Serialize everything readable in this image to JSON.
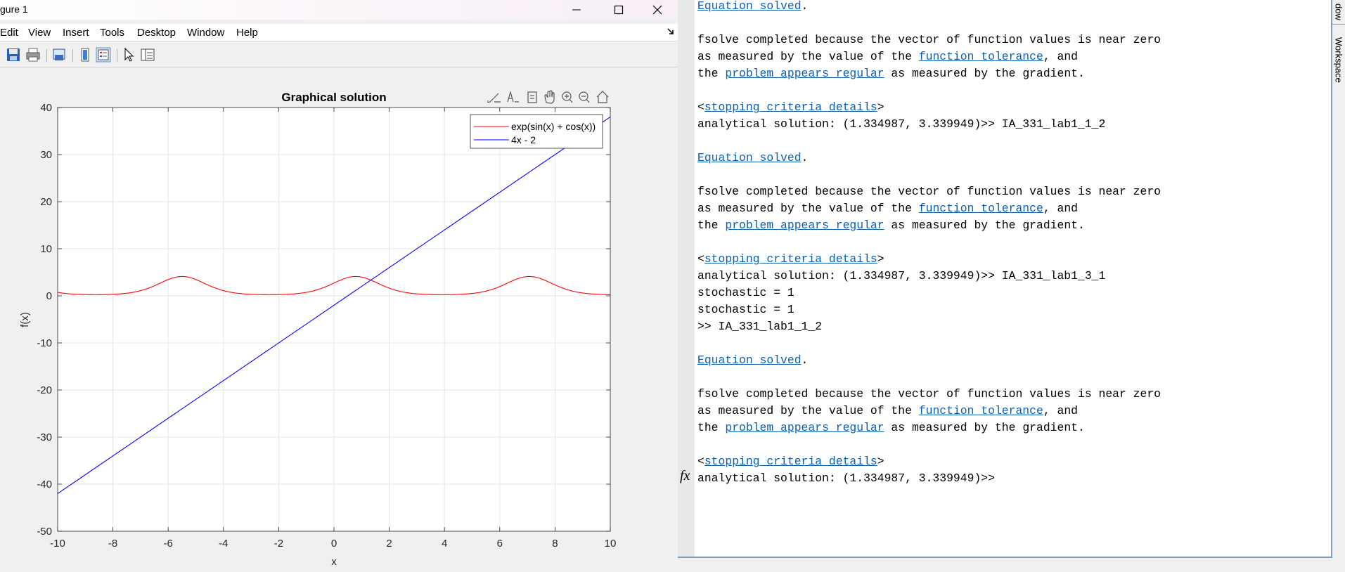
{
  "figure": {
    "title": "gure 1",
    "menu": [
      "Edit",
      "View",
      "Insert",
      "Tools",
      "Desktop",
      "Window",
      "Help"
    ]
  },
  "chart_data": {
    "type": "line",
    "title": "Graphical solution",
    "xlabel": "x",
    "ylabel": "f(x)",
    "xlim": [
      -10,
      10
    ],
    "ylim": [
      -50,
      40
    ],
    "xticks": [
      -10,
      -8,
      -6,
      -4,
      -2,
      0,
      2,
      4,
      6,
      8,
      10
    ],
    "yticks": [
      -50,
      -40,
      -30,
      -20,
      -10,
      0,
      10,
      20,
      30,
      40
    ],
    "grid": true,
    "legend_position": "top-right",
    "series": [
      {
        "name": "exp(sin(x) + cos(x))",
        "color": "#ff0000",
        "formula": "exp(sin(x)+cos(x))"
      },
      {
        "name": "4x - 2",
        "color": "#0000ff",
        "formula": "4*x-2",
        "x": [
          -10,
          10
        ],
        "y": [
          -42,
          38
        ]
      }
    ]
  },
  "command_window": {
    "lines": [
      [
        {
          "t": "Equation solved",
          "link": true
        },
        {
          "t": "."
        }
      ],
      [],
      [
        {
          "t": "fsolve completed because the vector of function values is near zero"
        }
      ],
      [
        {
          "t": "as measured by the value of the "
        },
        {
          "t": "function tolerance",
          "link": true
        },
        {
          "t": ", and"
        }
      ],
      [
        {
          "t": "the "
        },
        {
          "t": "problem appears regular",
          "link": true
        },
        {
          "t": " as measured by the gradient."
        }
      ],
      [],
      [
        {
          "t": "<"
        },
        {
          "t": "stopping criteria details",
          "link": true
        },
        {
          "t": ">"
        }
      ],
      [
        {
          "t": "analytical solution: (1.334987, 3.339949)>> IA_331_lab1_1_2"
        }
      ],
      [],
      [
        {
          "t": "Equation solved",
          "link": true
        },
        {
          "t": "."
        }
      ],
      [],
      [
        {
          "t": "fsolve completed because the vector of function values is near zero"
        }
      ],
      [
        {
          "t": "as measured by the value of the "
        },
        {
          "t": "function tolerance",
          "link": true
        },
        {
          "t": ", and"
        }
      ],
      [
        {
          "t": "the "
        },
        {
          "t": "problem appears regular",
          "link": true
        },
        {
          "t": " as measured by the gradient."
        }
      ],
      [],
      [
        {
          "t": "<"
        },
        {
          "t": "stopping criteria details",
          "link": true
        },
        {
          "t": ">"
        }
      ],
      [
        {
          "t": "analytical solution: (1.334987, 3.339949)>> IA_331_lab1_3_1"
        }
      ],
      [
        {
          "t": "stochastic = 1"
        }
      ],
      [
        {
          "t": "stochastic = 1"
        }
      ],
      [
        {
          "t": ">> IA_331_lab1_1_2"
        }
      ],
      [],
      [
        {
          "t": "Equation solved",
          "link": true
        },
        {
          "t": "."
        }
      ],
      [],
      [
        {
          "t": "fsolve completed because the vector of function values is near zero"
        }
      ],
      [
        {
          "t": "as measured by the value of the "
        },
        {
          "t": "function tolerance",
          "link": true
        },
        {
          "t": ", and"
        }
      ],
      [
        {
          "t": "the "
        },
        {
          "t": "problem appears regular",
          "link": true
        },
        {
          "t": " as measured by the gradient."
        }
      ],
      [],
      [
        {
          "t": "<"
        },
        {
          "t": "stopping criteria details",
          "link": true
        },
        {
          "t": ">"
        }
      ],
      [
        {
          "t": "analytical solution: (1.334987, 3.339949)>>"
        }
      ]
    ],
    "prompt_icon": "fx",
    "side_tabs": [
      "dow",
      "Workspace"
    ]
  }
}
